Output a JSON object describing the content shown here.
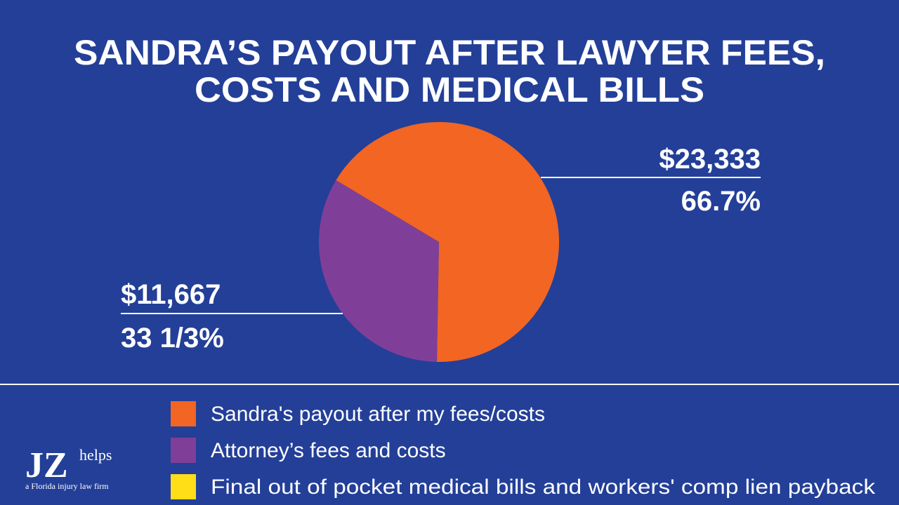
{
  "chart_data": {
    "type": "pie",
    "title": [
      "SANDRA’S PAYOUT AFTER LAWYER FEES,",
      "COSTS AND MEDICAL BILLS"
    ],
    "categories": [
      "Sandra's payout after my fees/costs",
      "Attorney’s fees and costs",
      "Final out of pocket medical bills and workers' comp lien payback"
    ],
    "values": [
      23333,
      11667,
      0
    ],
    "value_labels": [
      "$23,333",
      "$11,667",
      null
    ],
    "share_labels": [
      "66.7%",
      "33 1/3%",
      null
    ],
    "colors": [
      "#f26522",
      "#7f3f98",
      "#ffde17"
    ]
  },
  "logo": {
    "mark": "JZ",
    "word": "helps",
    "tagline": "a Florida injury law firm"
  }
}
